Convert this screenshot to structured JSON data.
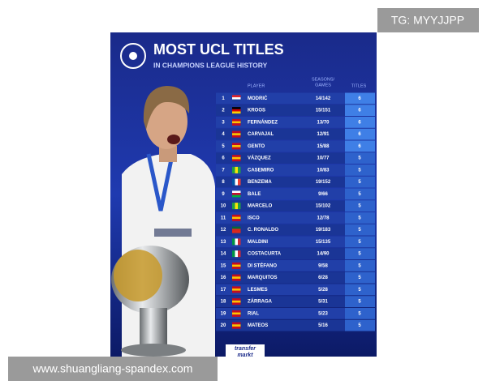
{
  "watermark_top": "TG: MYYJJPP",
  "watermark_bottom": "www.shuangliang-spandex.com",
  "header": {
    "title": "MOST UCL TITLES",
    "subtitle": "IN CHAMPIONS LEAGUE HISTORY"
  },
  "table": {
    "columns": {
      "player": "PLAYER",
      "seasons_games": [
        "SEASONS/",
        "GAMES"
      ],
      "titles": "TITLES"
    },
    "rows": [
      [
        1,
        "MODRIĆ",
        "14/142",
        6
      ],
      [
        2,
        "KROOS",
        "15/151",
        6
      ],
      [
        3,
        "FERNÁNDEZ",
        "13/70",
        6
      ],
      [
        4,
        "CARVAJAL",
        "12/91",
        6
      ],
      [
        5,
        "GENTO",
        "15/88",
        6
      ],
      [
        6,
        "VÁZQUEZ",
        "10/77",
        5
      ],
      [
        7,
        "CASEMIRO",
        "10/83",
        5
      ],
      [
        8,
        "BENZEMA",
        "19/152",
        5
      ],
      [
        9,
        "BALE",
        "9/66",
        5
      ],
      [
        10,
        "MARCELO",
        "15/102",
        5
      ],
      [
        11,
        "ISCO",
        "12/78",
        5
      ],
      [
        12,
        "C. RONALDO",
        "19/183",
        5
      ],
      [
        13,
        "MALDINI",
        "15/135",
        5
      ],
      [
        14,
        "COSTACURTA",
        "14/90",
        5
      ],
      [
        15,
        "DI STÉFANO",
        "9/58",
        5
      ],
      [
        16,
        "MARQUITOS",
        "6/28",
        5
      ],
      [
        17,
        "LESMES",
        "5/28",
        5
      ],
      [
        18,
        "ZÁRRAGA",
        "5/31",
        5
      ],
      [
        19,
        "RIAL",
        "5/23",
        5
      ],
      [
        20,
        "MATEOS",
        "5/16",
        5
      ]
    ]
  },
  "logo": [
    "transfer",
    "markt"
  ]
}
